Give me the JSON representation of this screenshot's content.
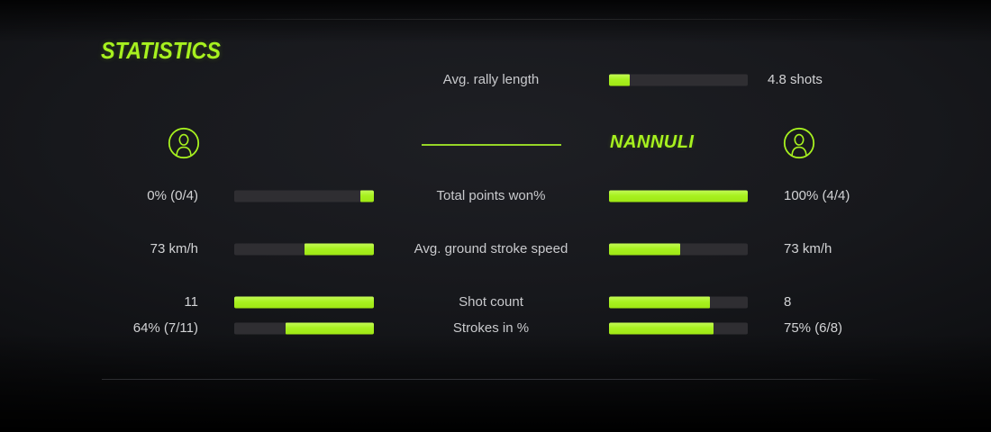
{
  "title": "STATISTICS",
  "players": {
    "left": {
      "name": "",
      "icon": "user-icon"
    },
    "right": {
      "name": "NANNULI",
      "icon": "user-icon"
    }
  },
  "colors": {
    "accent_green": "#a7f11f",
    "bar_track": "#2f2e32",
    "text": "#d2d3d5",
    "background": "#17181c"
  },
  "top_stat": {
    "label": "Avg. rally length",
    "right_value": "4.8 shots",
    "right_fill_pct": 15
  },
  "stats": [
    {
      "label": "Total points won%",
      "left_value": "0% (0/4)",
      "right_value": "100% (4/4)",
      "left_fill_pct": 10,
      "right_fill_pct": 100
    },
    {
      "label": "Avg. ground stroke speed",
      "left_value": "73 km/h",
      "right_value": "73 km/h",
      "left_fill_pct": 50,
      "right_fill_pct": 51
    },
    {
      "label": "Shot count",
      "left_value": "11",
      "right_value": "8",
      "left_fill_pct": 100,
      "right_fill_pct": 73
    },
    {
      "label": "Strokes in %",
      "left_value": "64% (7/11)",
      "right_value": "75% (6/8)",
      "left_fill_pct": 63,
      "right_fill_pct": 75
    }
  ],
  "chart_data": {
    "type": "bar",
    "orientation": "horizontal",
    "title": "STATISTICS",
    "categories": [
      "Avg. rally length",
      "Total points won%",
      "Avg. ground stroke speed",
      "Shot count",
      "Strokes in %"
    ],
    "series": [
      {
        "name": "",
        "values": [
          null,
          "0% (0/4)",
          "73 km/h",
          11,
          "64% (7/11)"
        ]
      },
      {
        "name": "NANNULI",
        "values": [
          "4.8 shots",
          "100% (4/4)",
          "73 km/h",
          8,
          "75% (6/8)"
        ]
      }
    ],
    "grid": false,
    "legend_position": "none"
  }
}
